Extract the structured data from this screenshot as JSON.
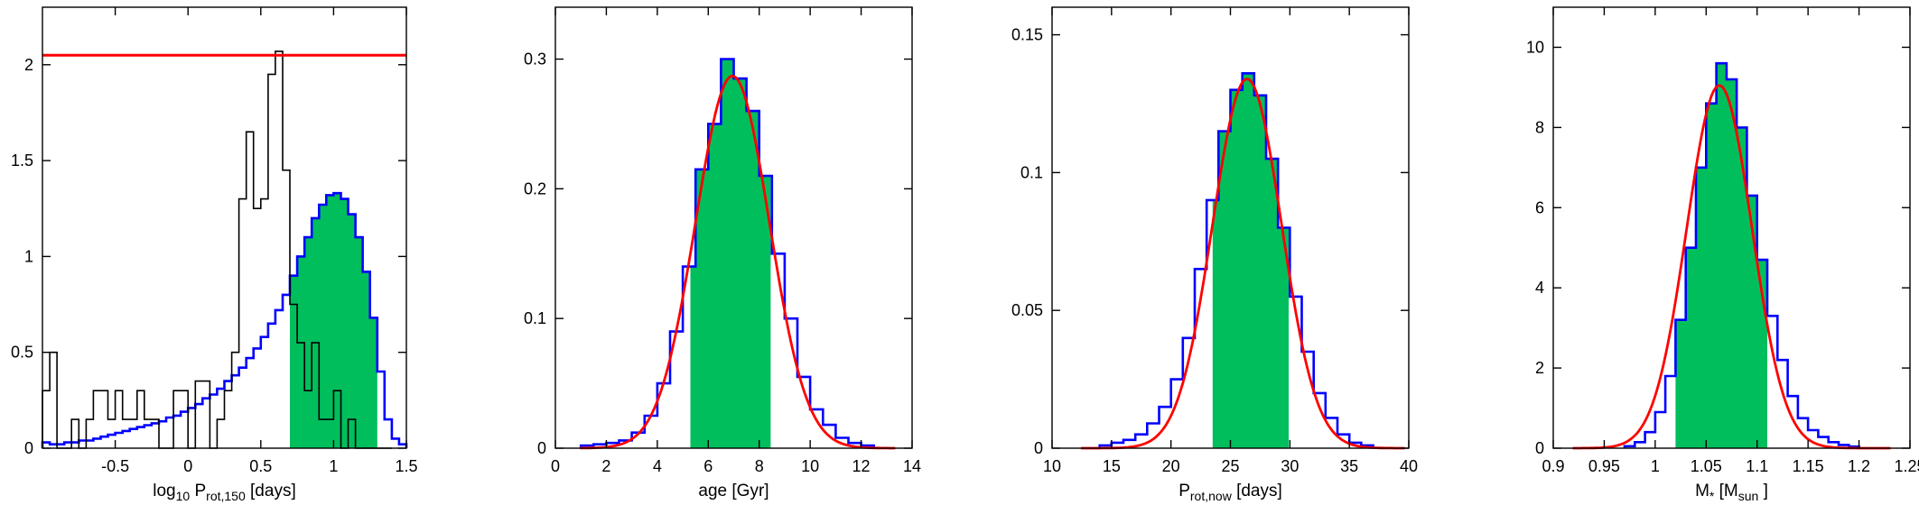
{
  "figure": {
    "background": "#ffffff",
    "axis_color": "#000000",
    "text_color": "#000000"
  },
  "chart_data": [
    {
      "id": "log-prot150",
      "type": "bar",
      "subtype": "stairs-histogram",
      "title": "",
      "xlabel": "log_10 P_rot,150  [days]",
      "xlabel_segments": [
        {
          "t": "log"
        },
        {
          "t": "10",
          "sub": true
        },
        {
          "t": " P"
        },
        {
          "t": "rot,150",
          "sub": true
        },
        {
          "t": "  [days]"
        }
      ],
      "xlim": [
        -1,
        1.5
      ],
      "ylim": [
        0,
        2.3
      ],
      "xticks": [
        {
          "v": -0.5,
          "label": "-0.5"
        },
        {
          "v": 0,
          "label": "0"
        },
        {
          "v": 0.5,
          "label": "0.5"
        },
        {
          "v": 1,
          "label": "1"
        },
        {
          "v": 1.5,
          "label": "1.5"
        }
      ],
      "yticks": [
        {
          "v": 0,
          "label": "0"
        },
        {
          "v": 0.5,
          "label": "0.5"
        },
        {
          "v": 1,
          "label": "1"
        },
        {
          "v": 1.5,
          "label": "1.5"
        },
        {
          "v": 2,
          "label": "2"
        }
      ],
      "series": [
        {
          "name": "credible-interval-fill",
          "kind": "fill_under",
          "source": "smoothed-posterior",
          "from": 0.7,
          "to": 1.3,
          "color": "#00be5c"
        },
        {
          "name": "smoothed-posterior",
          "kind": "stairs",
          "color": "#0000ff",
          "lw": 2.6,
          "bin_start": -1.0,
          "bin_width": 0.05,
          "values": [
            0.03,
            0.02,
            0.02,
            0.03,
            0.03,
            0.04,
            0.04,
            0.05,
            0.06,
            0.07,
            0.08,
            0.09,
            0.1,
            0.11,
            0.12,
            0.13,
            0.14,
            0.16,
            0.17,
            0.19,
            0.21,
            0.23,
            0.26,
            0.28,
            0.31,
            0.35,
            0.38,
            0.42,
            0.47,
            0.52,
            0.58,
            0.65,
            0.72,
            0.8,
            0.9,
            1.0,
            1.1,
            1.2,
            1.27,
            1.32,
            1.33,
            1.3,
            1.22,
            1.1,
            0.92,
            0.68,
            0.4,
            0.15,
            0.05,
            0.02
          ]
        },
        {
          "name": "raw-histogram",
          "kind": "stairs",
          "color": "#000000",
          "lw": 1.6,
          "bin_start": -1.0,
          "bin_width": 0.05,
          "values": [
            0.3,
            0.5,
            0.0,
            0.0,
            0.15,
            0.0,
            0.15,
            0.3,
            0.3,
            0.15,
            0.3,
            0.15,
            0.15,
            0.3,
            0.15,
            0.15,
            0.0,
            0.0,
            0.3,
            0.3,
            0.0,
            0.35,
            0.35,
            0.0,
            0.15,
            0.3,
            0.5,
            1.3,
            1.65,
            1.25,
            1.3,
            1.95,
            2.07,
            1.45,
            0.75,
            0.55,
            0.3,
            0.55,
            0.15,
            0.15,
            0.3,
            0.0,
            0.15,
            0.0,
            0.0,
            0.0,
            0.0,
            0.0
          ]
        },
        {
          "name": "threshold-line",
          "kind": "hline",
          "y": 2.05,
          "color": "#ff0000",
          "lw": 3
        }
      ]
    },
    {
      "id": "age",
      "type": "bar",
      "subtype": "stairs-histogram",
      "title": "",
      "xlabel": "age [Gyr]",
      "xlabel_segments": [
        {
          "t": "age [Gyr]"
        }
      ],
      "xlim": [
        0,
        14
      ],
      "ylim": [
        0,
        0.34
      ],
      "xticks": [
        {
          "v": 0,
          "label": "0"
        },
        {
          "v": 2,
          "label": "2"
        },
        {
          "v": 4,
          "label": "4"
        },
        {
          "v": 6,
          "label": "6"
        },
        {
          "v": 8,
          "label": "8"
        },
        {
          "v": 10,
          "label": "10"
        },
        {
          "v": 12,
          "label": "12"
        },
        {
          "v": 14,
          "label": "14"
        }
      ],
      "yticks": [
        {
          "v": 0,
          "label": "0"
        },
        {
          "v": 0.1,
          "label": "0.1"
        },
        {
          "v": 0.2,
          "label": "0.2"
        },
        {
          "v": 0.3,
          "label": "0.3"
        }
      ],
      "series": [
        {
          "name": "credible-interval-fill",
          "kind": "fill_under",
          "source": "age-histogram",
          "from": 5.3,
          "to": 8.45,
          "color": "#00be5c"
        },
        {
          "name": "age-histogram",
          "kind": "stairs",
          "color": "#0000ff",
          "lw": 2.6,
          "bin_start": 1.0,
          "bin_width": 0.5,
          "values": [
            0.002,
            0.003,
            0.004,
            0.006,
            0.012,
            0.025,
            0.05,
            0.09,
            0.14,
            0.215,
            0.25,
            0.3,
            0.285,
            0.26,
            0.21,
            0.15,
            0.1,
            0.055,
            0.03,
            0.018,
            0.008,
            0.004,
            0.002
          ]
        },
        {
          "name": "gaussian-fit",
          "kind": "gaussian",
          "mean": 6.95,
          "sigma": 1.45,
          "amp": 0.287,
          "range": [
            1.0,
            13.3
          ],
          "color": "#ff0000",
          "lw": 2.8
        }
      ]
    },
    {
      "id": "prot-now",
      "type": "bar",
      "subtype": "stairs-histogram",
      "title": "",
      "xlabel": "P_rot,now  [days]",
      "xlabel_segments": [
        {
          "t": "P"
        },
        {
          "t": "rot,now",
          "sub": true
        },
        {
          "t": "  [days]"
        }
      ],
      "xlim": [
        10,
        40
      ],
      "ylim": [
        0,
        0.16
      ],
      "xticks": [
        {
          "v": 10,
          "label": "10"
        },
        {
          "v": 15,
          "label": "15"
        },
        {
          "v": 20,
          "label": "20"
        },
        {
          "v": 25,
          "label": "25"
        },
        {
          "v": 30,
          "label": "30"
        },
        {
          "v": 35,
          "label": "35"
        },
        {
          "v": 40,
          "label": "40"
        }
      ],
      "yticks": [
        {
          "v": 0,
          "label": "0"
        },
        {
          "v": 0.05,
          "label": "0.05"
        },
        {
          "v": 0.1,
          "label": "0.1"
        },
        {
          "v": 0.15,
          "label": "0.15"
        }
      ],
      "series": [
        {
          "name": "credible-interval-fill",
          "kind": "fill_under",
          "source": "prot-histogram",
          "from": 23.5,
          "to": 29.9,
          "color": "#00be5c"
        },
        {
          "name": "prot-histogram",
          "kind": "stairs",
          "color": "#0000ff",
          "lw": 2.6,
          "bin_start": 14,
          "bin_width": 1,
          "values": [
            0.001,
            0.002,
            0.003,
            0.005,
            0.009,
            0.015,
            0.025,
            0.04,
            0.065,
            0.09,
            0.115,
            0.13,
            0.136,
            0.128,
            0.105,
            0.08,
            0.055,
            0.035,
            0.02,
            0.011,
            0.005,
            0.002,
            0.001
          ]
        },
        {
          "name": "gaussian-fit",
          "kind": "gaussian",
          "mean": 26.4,
          "sigma": 2.9,
          "amp": 0.134,
          "range": [
            12.5,
            39.6
          ],
          "color": "#ff0000",
          "lw": 2.8
        }
      ]
    },
    {
      "id": "stellar-mass",
      "type": "bar",
      "subtype": "stairs-histogram",
      "title": "",
      "xlabel": "M_* [M_sun ]",
      "xlabel_segments": [
        {
          "t": "M"
        },
        {
          "t": "*",
          "sub": true
        },
        {
          "t": " [M"
        },
        {
          "t": "sun",
          "sub": true
        },
        {
          "t": " ]"
        }
      ],
      "xlim": [
        0.9,
        1.25
      ],
      "ylim": [
        0,
        11
      ],
      "xticks": [
        {
          "v": 0.9,
          "label": "0.9"
        },
        {
          "v": 0.95,
          "label": "0.95"
        },
        {
          "v": 1,
          "label": "1"
        },
        {
          "v": 1.05,
          "label": "1.05"
        },
        {
          "v": 1.1,
          "label": "1.1"
        },
        {
          "v": 1.15,
          "label": "1.15"
        },
        {
          "v": 1.2,
          "label": "1.2"
        },
        {
          "v": 1.25,
          "label": "1.25"
        }
      ],
      "yticks": [
        {
          "v": 0,
          "label": "0"
        },
        {
          "v": 2,
          "label": "2"
        },
        {
          "v": 4,
          "label": "4"
        },
        {
          "v": 6,
          "label": "6"
        },
        {
          "v": 8,
          "label": "8"
        },
        {
          "v": 10,
          "label": "10"
        }
      ],
      "series": [
        {
          "name": "credible-interval-fill",
          "kind": "fill_under",
          "source": "mass-histogram",
          "from": 1.02,
          "to": 1.11,
          "color": "#00be5c"
        },
        {
          "name": "mass-histogram",
          "kind": "stairs",
          "color": "#0000ff",
          "lw": 2.6,
          "bin_start": 0.97,
          "bin_width": 0.01,
          "values": [
            0.05,
            0.15,
            0.4,
            0.9,
            1.8,
            3.2,
            5.0,
            7.0,
            8.6,
            9.6,
            9.2,
            8.0,
            6.3,
            4.7,
            3.3,
            2.2,
            1.3,
            0.75,
            0.45,
            0.28,
            0.15,
            0.08,
            0.04
          ]
        },
        {
          "name": "gaussian-fit",
          "kind": "gaussian",
          "mean": 1.063,
          "sigma": 0.032,
          "amp": 9.05,
          "range": [
            0.92,
            1.23
          ],
          "color": "#ff0000",
          "lw": 2.8
        }
      ]
    }
  ]
}
